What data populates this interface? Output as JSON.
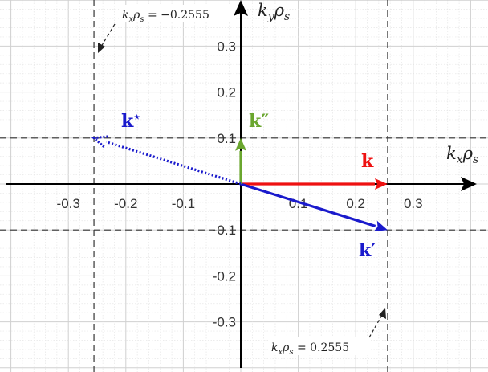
{
  "axes": {
    "x_label": "k",
    "x_label_sub": "x",
    "x_label_rho": "ρ",
    "x_label_rho_sub": "s",
    "y_label": "k",
    "y_label_sub": "y",
    "y_label_rho": "ρ",
    "y_label_rho_sub": "s",
    "x_ticks": [
      "-0.3",
      "-0.2",
      "-0.1",
      "0.1",
      "0.2",
      "0.3"
    ],
    "y_ticks": [
      "0.3",
      "0.2",
      "0.1",
      "-0.1",
      "-0.2",
      "-0.3"
    ],
    "x_range": [
      -0.51,
      0.51
    ],
    "y_range": [
      -0.4,
      0.4
    ],
    "grid": true
  },
  "vectors": [
    {
      "name": "k",
      "label": "k",
      "prime": "",
      "color": "#ee1111",
      "to": [
        0.2555,
        0.0
      ],
      "style": "solid"
    },
    {
      "name": "k-prime",
      "label": "k",
      "prime": "′",
      "color": "#1a1acc",
      "to": [
        0.2555,
        -0.1
      ],
      "style": "solid"
    },
    {
      "name": "k-double-prime",
      "label": "k",
      "prime": "″",
      "color": "#6aa62e",
      "to": [
        0.0,
        0.1
      ],
      "style": "solid"
    },
    {
      "name": "k-star",
      "label": "k",
      "prime": "⋆",
      "color": "#1a1acc",
      "to": [
        -0.2555,
        0.1
      ],
      "style": "dotted"
    }
  ],
  "reference_lines": {
    "vertical": [
      -0.2555,
      0.2555
    ],
    "horizontal": [
      0.1,
      -0.1
    ]
  },
  "annotations": [
    {
      "name": "annotation-negative",
      "k": "k",
      "k_sub": "x",
      "rho": "ρ",
      "rho_sub": "s",
      "eq": " = −0.2555"
    },
    {
      "name": "annotation-positive",
      "k": "k",
      "k_sub": "x",
      "rho": "ρ",
      "rho_sub": "s",
      "eq": " = 0.2555"
    }
  ]
}
